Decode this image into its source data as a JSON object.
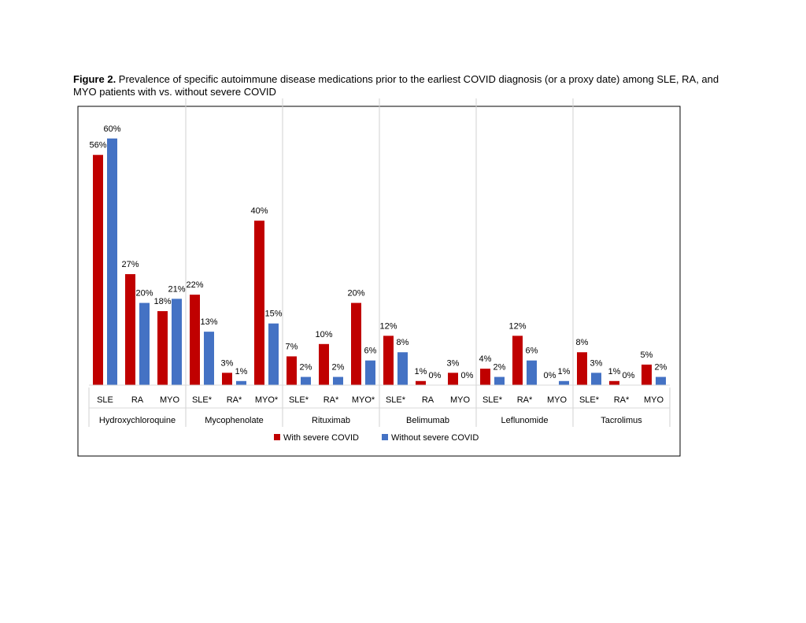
{
  "caption": {
    "label": "Figure 2.",
    "text": " Prevalence of specific autoimmune disease medications prior to the earliest COVID diagnosis (or a proxy date) among SLE, RA, and MYO patients with vs. without severe COVID"
  },
  "colors": {
    "with": "#c00000",
    "without": "#4472c4"
  },
  "chart_data": {
    "type": "bar",
    "ylim": [
      0,
      66
    ],
    "grid": false,
    "legend_position": "bottom",
    "groups": [
      {
        "name": "Hydroxychloroquine",
        "categories": [
          "SLE",
          "RA",
          "MYO"
        ]
      },
      {
        "name": "Mycophenolate",
        "categories": [
          "SLE*",
          "RA*",
          "MYO*"
        ]
      },
      {
        "name": "Rituximab",
        "categories": [
          "SLE*",
          "RA*",
          "MYO*"
        ]
      },
      {
        "name": "Belimumab",
        "categories": [
          "SLE*",
          "RA",
          "MYO"
        ]
      },
      {
        "name": "Leflunomide",
        "categories": [
          "SLE*",
          "RA*",
          "MYO"
        ]
      },
      {
        "name": "Tacrolimus",
        "categories": [
          "SLE*",
          "RA*",
          "MYO"
        ]
      }
    ],
    "series": [
      {
        "name": "With severe COVID",
        "values": [
          56,
          27,
          18,
          22,
          3,
          40,
          7,
          10,
          20,
          12,
          1,
          3,
          4,
          12,
          0,
          8,
          1,
          5
        ],
        "labels": [
          "56%",
          "27%",
          "18%",
          "22%",
          "3%",
          "40%",
          "7%",
          "10%",
          "20%",
          "12%",
          "1%",
          "3%",
          "4%",
          "12%",
          "0%",
          "8%",
          "1%",
          "5%"
        ]
      },
      {
        "name": "Without severe COVID",
        "values": [
          60,
          20,
          21,
          13,
          1,
          15,
          2,
          2,
          6,
          8,
          0,
          0,
          2,
          6,
          1,
          3,
          0,
          2
        ],
        "labels": [
          "60%",
          "20%",
          "21%",
          "13%",
          "1%",
          "15%",
          "2%",
          "2%",
          "6%",
          "8%",
          "0%",
          "0%",
          "2%",
          "6%",
          "1%",
          "3%",
          "0%",
          "2%"
        ]
      }
    ]
  }
}
